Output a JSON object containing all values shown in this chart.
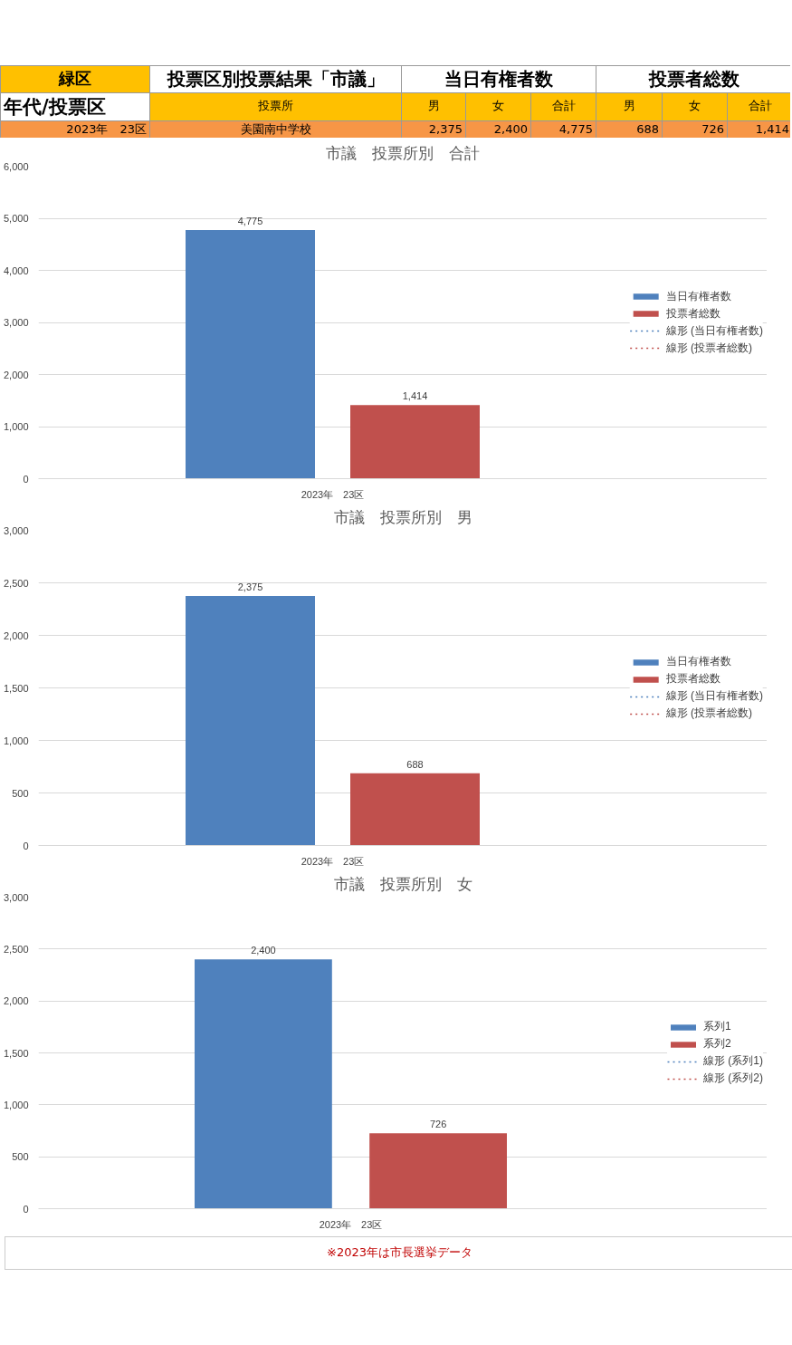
{
  "chart_data": [
    {
      "type": "other",
      "annotations": [
        "緑区",
        "投票区別投票結果「市議」",
        "当日有権者数",
        "投票者総数",
        "年代/投票区",
        "投票所",
        "男",
        "女",
        "合計",
        "男",
        "女",
        "合計",
        "2023年　23区",
        "美園南中学校",
        "2,375",
        "2,400",
        "4,775",
        "688",
        "726",
        "1,414"
      ]
    },
    {
      "type": "bar",
      "title": "市議　投票所別　合計",
      "categories": [
        "2023年　23区"
      ],
      "series": [
        {
          "name": "当日有権者数",
          "color": "#4f81bd",
          "values": [
            4775
          ],
          "value_labels": [
            "4,775"
          ]
        },
        {
          "name": "投票者総数",
          "color": "#c0504d",
          "values": [
            1414
          ],
          "value_labels": [
            "1,414"
          ]
        },
        {
          "name": "線形 (当日有権者数)",
          "type": "line",
          "line_style": "dotted",
          "color": "#4f81bd",
          "values": [
            null
          ]
        },
        {
          "name": "線形 (投票者総数)",
          "type": "line",
          "line_style": "dotted",
          "color": "#c0504d",
          "values": [
            null
          ]
        }
      ],
      "ylim": [
        0,
        6000
      ],
      "yticks": [
        0,
        {
          "value": 1000,
          "label": "1,000"
        },
        {
          "value": 2000,
          "label": "2,000"
        },
        {
          "value": 3000,
          "label": "3,000"
        },
        {
          "value": 4000,
          "label": "4,000"
        },
        {
          "value": 5000,
          "label": "5,000"
        },
        {
          "value": 6000,
          "label": "6,000"
        }
      ],
      "grid": "y",
      "legend": "right"
    },
    {
      "type": "bar",
      "title": "市議　投票所別　男",
      "categories": [
        "2023年　23区"
      ],
      "series": [
        {
          "name": "当日有権者数",
          "color": "#4f81bd",
          "values": [
            2375
          ],
          "value_labels": [
            "2,375"
          ]
        },
        {
          "name": "投票者総数",
          "color": "#c0504d",
          "values": [
            688
          ],
          "value_labels": [
            "688"
          ]
        },
        {
          "name": "線形 (当日有権者数)",
          "type": "line",
          "line_style": "dotted",
          "color": "#4f81bd",
          "values": [
            null
          ]
        },
        {
          "name": "線形 (投票者総数)",
          "type": "line",
          "line_style": "dotted",
          "color": "#c0504d",
          "values": [
            null
          ]
        }
      ],
      "ylim": [
        0,
        3000
      ],
      "yticks": [
        0,
        500,
        {
          "value": 1000,
          "label": "1,000"
        },
        {
          "value": 1500,
          "label": "1,500"
        },
        {
          "value": 2000,
          "label": "2,000"
        },
        {
          "value": 2500,
          "label": "2,500"
        },
        {
          "value": 3000,
          "label": "3,000"
        }
      ],
      "grid": "y",
      "legend": "right"
    },
    {
      "type": "bar",
      "title": "市議　投票所別　女",
      "categories": [
        "2023年　23区"
      ],
      "series": [
        {
          "name": "系列1",
          "color": "#4f81bd",
          "values": [
            2400
          ],
          "value_labels": [
            "2,400"
          ]
        },
        {
          "name": "系列2",
          "color": "#c0504d",
          "values": [
            726
          ],
          "value_labels": [
            "726"
          ]
        },
        {
          "name": "線形 (系列1)",
          "type": "line",
          "line_style": "dotted",
          "color": "#4f81bd",
          "values": [
            null
          ]
        },
        {
          "name": "線形 (系列2)",
          "type": "line",
          "line_style": "dotted",
          "color": "#c0504d",
          "values": [
            null
          ]
        }
      ],
      "ylim": [
        0,
        3000
      ],
      "yticks": [
        0,
        500,
        {
          "value": 1000,
          "label": "1,000"
        },
        {
          "value": 1500,
          "label": "1,500"
        },
        {
          "value": 2000,
          "label": "2,000"
        },
        {
          "value": 2500,
          "label": "2,500"
        },
        {
          "value": 3000,
          "label": "3,000"
        }
      ],
      "grid": "y",
      "legend": "right",
      "annotations": [
        "※2023年は市長選挙データ"
      ]
    }
  ]
}
